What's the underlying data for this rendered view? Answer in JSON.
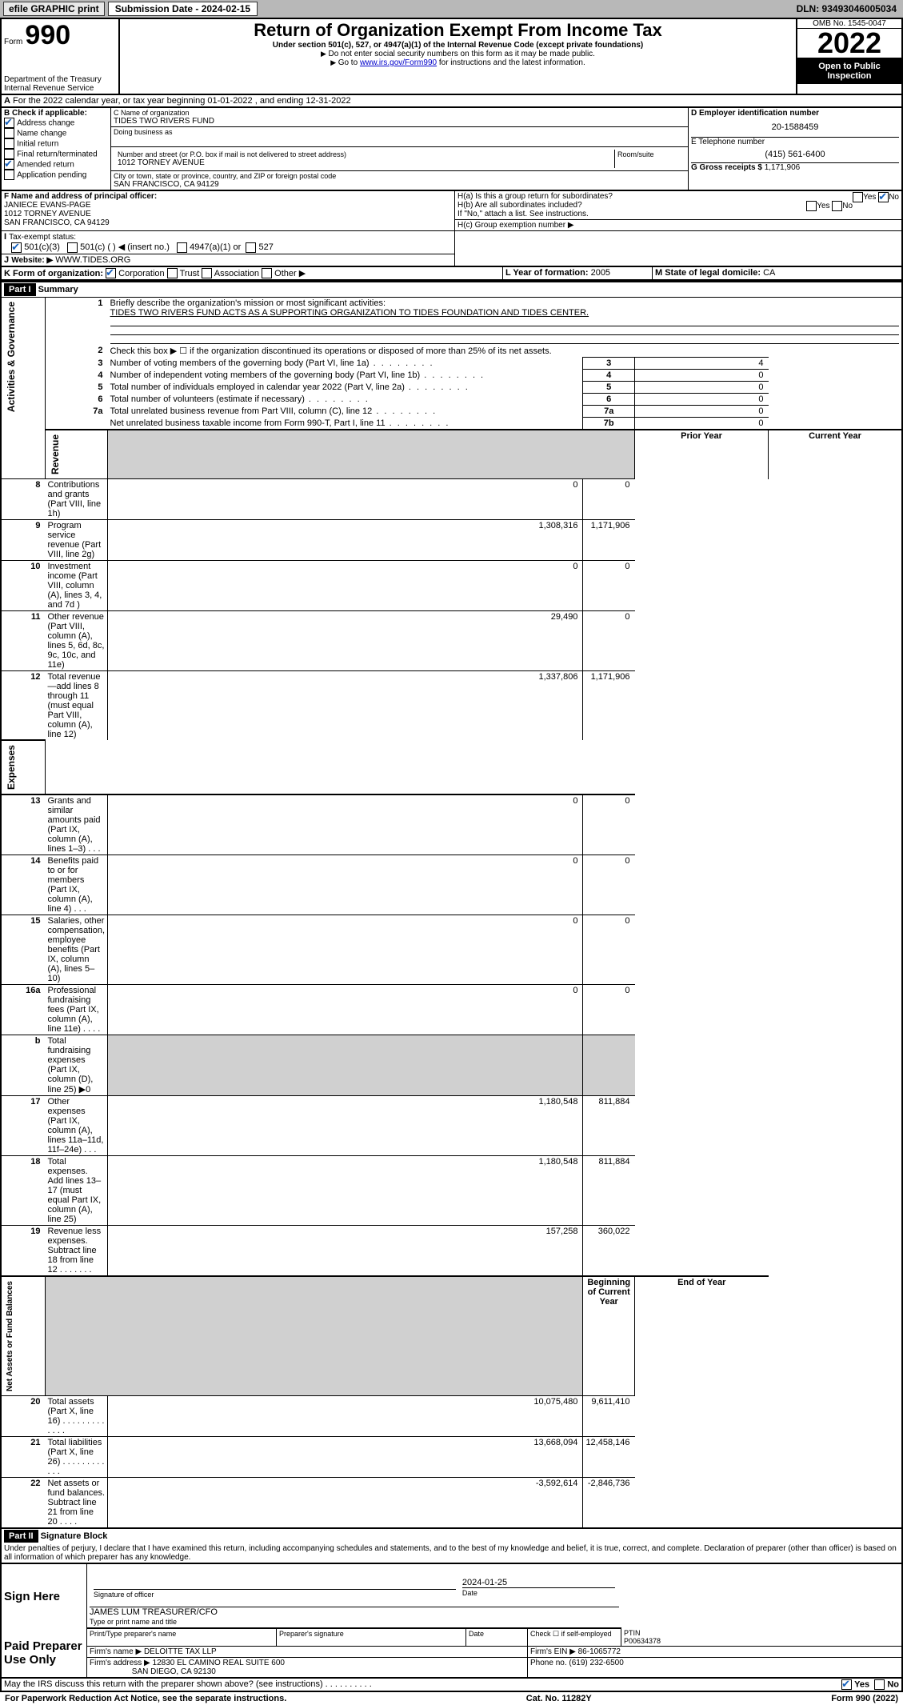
{
  "topbar": {
    "efile": "efile GRAPHIC print",
    "sub_label": "Submission Date - 2024-02-15",
    "dln": "DLN: 93493046005034"
  },
  "header": {
    "form_word": "Form",
    "form_num": "990",
    "title": "Return of Organization Exempt From Income Tax",
    "subtitle": "Under section 501(c), 527, or 4947(a)(1) of the Internal Revenue Code (except private foundations)",
    "note1": "Do not enter social security numbers on this form as it may be made public.",
    "note2_pre": "Go to ",
    "note2_link": "www.irs.gov/Form990",
    "note2_post": " for instructions and the latest information.",
    "omb": "OMB No. 1545-0047",
    "year": "2022",
    "open": "Open to Public Inspection",
    "dept": "Department of the Treasury",
    "irs": "Internal Revenue Service"
  },
  "lineA": "For the 2022 calendar year, or tax year beginning 01-01-2022   , and ending 12-31-2022",
  "boxB": {
    "label": "B Check if applicable:",
    "items": [
      "Address change",
      "Name change",
      "Initial return",
      "Final return/terminated",
      "Amended return",
      "Application pending"
    ],
    "checked": [
      true,
      false,
      false,
      false,
      true,
      false
    ]
  },
  "boxC": {
    "label_name": "C Name of organization",
    "name": "TIDES TWO RIVERS FUND",
    "dba_label": "Doing business as",
    "addr_label": "Number and street (or P.O. box if mail is not delivered to street address)",
    "room_label": "Room/suite",
    "addr": "1012 TORNEY AVENUE",
    "city_label": "City or town, state or province, country, and ZIP or foreign postal code",
    "city": "SAN FRANCISCO, CA  94129"
  },
  "boxD": {
    "label": "D Employer identification number",
    "val": "20-1588459"
  },
  "boxE": {
    "label": "E Telephone number",
    "val": "(415) 561-6400"
  },
  "boxG": {
    "label": "G Gross receipts $",
    "val": "1,171,906"
  },
  "boxF": {
    "label": "F Name and address of principal officer:",
    "name": "JANIECE EVANS-PAGE",
    "addr1": "1012 TORNEY AVENUE",
    "addr2": "SAN FRANCISCO, CA  94129"
  },
  "boxH": {
    "a_label": "H(a)  Is this a group return for subordinates?",
    "b_label": "H(b)  Are all subordinates included?",
    "b_note": "If \"No,\" attach a list. See instructions.",
    "c_label": "H(c)  Group exemption number ▶",
    "yes": "Yes",
    "no": "No"
  },
  "boxI": {
    "label": "Tax-exempt status:",
    "opt1": "501(c)(3)",
    "opt2": "501(c) (   ) ◀ (insert no.)",
    "opt3": "4947(a)(1) or",
    "opt4": "527"
  },
  "boxJ": {
    "label": "Website: ▶",
    "val": "WWW.TIDES.ORG"
  },
  "boxK": {
    "label": "K Form of organization:",
    "opts": [
      "Corporation",
      "Trust",
      "Association",
      "Other ▶"
    ]
  },
  "boxL": {
    "label": "L Year of formation:",
    "val": "2005"
  },
  "boxM": {
    "label": "M State of legal domicile:",
    "val": "CA"
  },
  "part1": {
    "title": "Part I",
    "subtitle": "Summary",
    "line1_label": "Briefly describe the organization's mission or most significant activities:",
    "line1_text": "TIDES TWO RIVERS FUND ACTS AS A SUPPORTING ORGANIZATION TO TIDES FOUNDATION AND TIDES CENTER.",
    "line2": "Check this box ▶ ☐  if the organization discontinued its operations or disposed of more than 25% of its net assets.",
    "gov_rows": [
      {
        "n": "3",
        "t": "Number of voting members of the governing body (Part VI, line 1a)",
        "box": "3",
        "v": "4"
      },
      {
        "n": "4",
        "t": "Number of independent voting members of the governing body (Part VI, line 1b)",
        "box": "4",
        "v": "0"
      },
      {
        "n": "5",
        "t": "Total number of individuals employed in calendar year 2022 (Part V, line 2a)",
        "box": "5",
        "v": "0"
      },
      {
        "n": "6",
        "t": "Total number of volunteers (estimate if necessary)",
        "box": "6",
        "v": "0"
      },
      {
        "n": "7a",
        "t": "Total unrelated business revenue from Part VIII, column (C), line 12",
        "box": "7a",
        "v": "0"
      },
      {
        "n": "",
        "t": "Net unrelated business taxable income from Form 990-T, Part I, line 11",
        "box": "7b",
        "v": "0"
      }
    ],
    "col_py": "Prior Year",
    "col_cy": "Current Year",
    "rev_rows": [
      {
        "n": "8",
        "t": "Contributions and grants (Part VIII, line 1h)",
        "py": "0",
        "cy": "0"
      },
      {
        "n": "9",
        "t": "Program service revenue (Part VIII, line 2g)",
        "py": "1,308,316",
        "cy": "1,171,906"
      },
      {
        "n": "10",
        "t": "Investment income (Part VIII, column (A), lines 3, 4, and 7d )",
        "py": "0",
        "cy": "0"
      },
      {
        "n": "11",
        "t": "Other revenue (Part VIII, column (A), lines 5, 6d, 8c, 9c, 10c, and 11e)",
        "py": "29,490",
        "cy": "0"
      },
      {
        "n": "12",
        "t": "Total revenue—add lines 8 through 11 (must equal Part VIII, column (A), line 12)",
        "py": "1,337,806",
        "cy": "1,171,906"
      }
    ],
    "exp_rows": [
      {
        "n": "13",
        "t": "Grants and similar amounts paid (Part IX, column (A), lines 1–3)  .   .   .",
        "py": "0",
        "cy": "0"
      },
      {
        "n": "14",
        "t": "Benefits paid to or for members (Part IX, column (A), line 4)  .   .   .",
        "py": "0",
        "cy": "0"
      },
      {
        "n": "15",
        "t": "Salaries, other compensation, employee benefits (Part IX, column (A), lines 5–10)",
        "py": "0",
        "cy": "0"
      },
      {
        "n": "16a",
        "t": "Professional fundraising fees (Part IX, column (A), line 11e)  .   .   .   .",
        "py": "0",
        "cy": "0"
      },
      {
        "n": "b",
        "t": "Total fundraising expenses (Part IX, column (D), line 25) ▶0",
        "py": "",
        "cy": "",
        "shade": true
      },
      {
        "n": "17",
        "t": "Other expenses (Part IX, column (A), lines 11a–11d, 11f–24e)  .   .   .",
        "py": "1,180,548",
        "cy": "811,884"
      },
      {
        "n": "18",
        "t": "Total expenses. Add lines 13–17 (must equal Part IX, column (A), line 25)",
        "py": "1,180,548",
        "cy": "811,884"
      },
      {
        "n": "19",
        "t": "Revenue less expenses. Subtract line 18 from line 12  .   .   .   .   .   .   .",
        "py": "157,258",
        "cy": "360,022"
      }
    ],
    "col_boy": "Beginning of Current Year",
    "col_eoy": "End of Year",
    "na_rows": [
      {
        "n": "20",
        "t": "Total assets (Part X, line 16)  .   .   .   .   .   .   .   .   .   .   .   .   .",
        "py": "10,075,480",
        "cy": "9,611,410"
      },
      {
        "n": "21",
        "t": "Total liabilities (Part X, line 26)  .   .   .   .   .   .   .   .   .   .   .   .",
        "py": "13,668,094",
        "cy": "12,458,146"
      },
      {
        "n": "22",
        "t": "Net assets or fund balances. Subtract line 21 from line 20  .   .   .   .",
        "py": "-3,592,614",
        "cy": "-2,846,736"
      }
    ],
    "side_gov": "Activities & Governance",
    "side_rev": "Revenue",
    "side_exp": "Expenses",
    "side_na": "Net Assets or Fund Balances"
  },
  "part2": {
    "title": "Part II",
    "subtitle": "Signature Block",
    "decl": "Under penalties of perjury, I declare that I have examined this return, including accompanying schedules and statements, and to the best of my knowledge and belief, it is true, correct, and complete. Declaration of preparer (other than officer) is based on all information of which preparer has any knowledge.",
    "sign_here": "Sign Here",
    "sig_officer": "Signature of officer",
    "sig_date": "Date",
    "sig_date_val": "2024-01-25",
    "sig_name": "JAMES LUM  TREASURER/CFO",
    "sig_name_label": "Type or print name and title",
    "paid": "Paid Preparer Use Only",
    "prep_name_label": "Print/Type preparer's name",
    "prep_sig_label": "Preparer's signature",
    "date_label": "Date",
    "check_if": "Check ☐ if self-employed",
    "ptin_label": "PTIN",
    "ptin": "P00634378",
    "firm_name_label": "Firm's name   ▶",
    "firm_name": "DELOITTE TAX LLP",
    "firm_ein_label": "Firm's EIN ▶",
    "firm_ein": "86-1065772",
    "firm_addr_label": "Firm's address ▶",
    "firm_addr1": "12830 EL CAMINO REAL SUITE 600",
    "firm_addr2": "SAN DIEGO, CA  92130",
    "phone_label": "Phone no.",
    "phone": "(619) 232-6500",
    "discuss": "May the IRS discuss this return with the preparer shown above? (see instructions)   .   .   .   .   .   .   .   .   .   ."
  },
  "footer": {
    "left": "For Paperwork Reduction Act Notice, see the separate instructions.",
    "mid": "Cat. No. 11282Y",
    "right": "Form 990 (2022)"
  }
}
